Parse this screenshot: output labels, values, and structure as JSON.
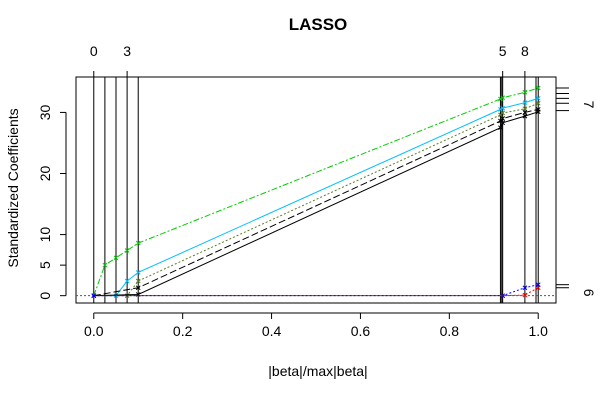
{
  "chart_data": {
    "type": "line",
    "title": "LASSO",
    "xlabel": "|beta|/max|beta|",
    "ylabel": "Standardized Coefficients",
    "xlim": [
      -0.04,
      1.04
    ],
    "ylim": [
      -1.2,
      35.8
    ],
    "x_ticks": [
      0.0,
      0.2,
      0.4,
      0.6,
      0.8,
      1.0
    ],
    "x_tick_labels": [
      "0.0",
      "0.2",
      "0.4",
      "0.6",
      "0.8",
      "1.0"
    ],
    "y_ticks": [
      0,
      5,
      10,
      20,
      30
    ],
    "y_tick_labels": [
      "0",
      "5",
      "10",
      "20",
      "30"
    ],
    "grid": false,
    "steps": [
      0.0,
      0.025,
      0.05,
      0.075,
      0.1,
      0.915,
      0.918,
      0.92,
      0.97,
      0.995,
      1.0
    ],
    "top_ticks": [
      0.0,
      0.075,
      0.92,
      0.97
    ],
    "top_tick_labels": [
      "0",
      "3",
      "5",
      "8"
    ],
    "right_ticks": [
      6,
      7
    ],
    "right_tick_labels": [
      "6",
      "7"
    ],
    "right_tick_y": [
      0.5,
      31.3
    ],
    "right_minor_y": [
      1.3,
      1.8,
      30.3,
      31.5,
      32.3,
      33.1,
      34.0
    ],
    "zero_line": true,
    "series": [
      {
        "color": "#00cd00",
        "dash": "6,2,2,2",
        "x": [
          0.0,
          0.025,
          0.05,
          0.075,
          0.1,
          0.915,
          0.92,
          0.97,
          1.0
        ],
        "y": [
          0.0,
          5.0,
          6.2,
          7.4,
          8.6,
          32.2,
          32.4,
          33.3,
          34.0
        ]
      },
      {
        "color": "#00bfff",
        "dash": "",
        "x": [
          0.0,
          0.05,
          0.075,
          0.1,
          0.915,
          0.92,
          0.97,
          1.0
        ],
        "y": [
          0.0,
          0.0,
          2.4,
          3.8,
          30.5,
          30.7,
          31.6,
          32.3
        ]
      },
      {
        "color": "#5a7d2a",
        "dash": "2,2",
        "x": [
          0.0,
          0.075,
          0.1,
          0.915,
          0.92,
          0.97,
          1.0
        ],
        "y": [
          0.0,
          0.0,
          2.4,
          29.6,
          29.9,
          30.6,
          31.5
        ]
      },
      {
        "color": "#000000",
        "dash": "7,3",
        "x": [
          0.0,
          0.1,
          0.915,
          0.92,
          0.97,
          1.0
        ],
        "y": [
          0.0,
          1.3,
          28.6,
          29.0,
          30.0,
          30.5
        ]
      },
      {
        "color": "#000000",
        "dash": "",
        "x": [
          0.0,
          0.1,
          0.915,
          0.92,
          0.97,
          1.0
        ],
        "y": [
          0.0,
          0.2,
          27.5,
          28.3,
          29.4,
          30.1
        ]
      },
      {
        "color": "#ff0000",
        "dash": "2,2",
        "x": [
          0.0,
          0.92,
          0.97,
          1.0
        ],
        "y": [
          0.0,
          0.0,
          0.1,
          1.3
        ]
      },
      {
        "color": "#0000ff",
        "dash": "2,2",
        "x": [
          0.0,
          0.92,
          0.97,
          1.0
        ],
        "y": [
          0.0,
          0.0,
          1.3,
          1.8
        ]
      }
    ]
  }
}
